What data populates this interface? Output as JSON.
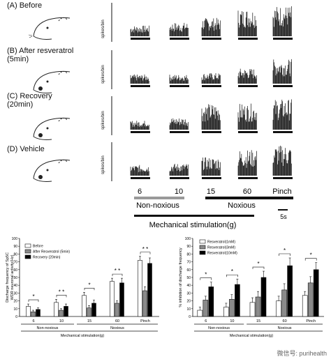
{
  "top_figure": {
    "panels": [
      {
        "label": "(A) Before"
      },
      {
        "label": "(B) After resveratrol\n(5min)"
      },
      {
        "label": "(C) Recovery\n(20min)"
      },
      {
        "label": "(D)  Vehicle"
      }
    ],
    "y_axis_label": "spikes/bin",
    "stimulus_labels": [
      "6",
      "10",
      "15",
      "60",
      "Pinch"
    ],
    "group_non_noxious": "Non-noxious",
    "group_noxious": "Noxious",
    "axis_title": "Mechanical stimulation(g)",
    "scale_bar": "5s"
  },
  "chart_data": [
    {
      "type": "bar",
      "ylabel": "Discharge frequency of Sp5C\nWDR neuronal activity(Hz)",
      "xlabel": "Mechanical stimulation(g)",
      "ylim": [
        0,
        100
      ],
      "yticks": [
        0,
        10,
        20,
        30,
        40,
        50,
        60,
        70,
        80,
        90,
        100
      ],
      "categories": [
        "6",
        "10",
        "15",
        "60",
        "Pinch"
      ],
      "groups": [
        {
          "label": "Non-noxious",
          "span": [
            0,
            1
          ]
        },
        {
          "label": "Noxious",
          "span": [
            2,
            4
          ]
        }
      ],
      "series": [
        {
          "name": "Before",
          "color": "#ffffff",
          "values": [
            13,
            18,
            27,
            45,
            72
          ],
          "errors": [
            3,
            4,
            4,
            4,
            5
          ]
        },
        {
          "name": "After Resveratrol (5min)",
          "color": "#8a8a8a",
          "values": [
            6,
            8,
            11,
            17,
            33
          ],
          "errors": [
            2,
            2,
            3,
            3,
            5
          ]
        },
        {
          "name": "Recovery (20min)",
          "color": "#000000",
          "values": [
            9,
            13,
            17,
            43,
            68
          ],
          "errors": [
            2,
            3,
            4,
            6,
            7
          ]
        }
      ],
      "annotations": [
        "*",
        "#",
        "* *",
        "* *",
        "* *",
        "*",
        "#",
        "#"
      ]
    },
    {
      "type": "bar",
      "ylabel": "% inhibition of discharge frequency",
      "xlabel": "Mechanical stimulation(g)",
      "ylim": [
        0,
        100
      ],
      "yticks": [
        0,
        10,
        20,
        30,
        40,
        50,
        60,
        70,
        80,
        90,
        100
      ],
      "categories": [
        "6",
        "10",
        "15",
        "60",
        "Pinch"
      ],
      "groups": [
        {
          "label": "Non-noxious",
          "span": [
            0,
            1
          ]
        },
        {
          "label": "Noxious",
          "span": [
            2,
            4
          ]
        }
      ],
      "series": [
        {
          "name": "Resveratrol(1mM)",
          "color": "#ffffff",
          "values": [
            8,
            12,
            18,
            20,
            27
          ],
          "errors": [
            4,
            5,
            6,
            6,
            5
          ]
        },
        {
          "name": "Resveratrol(3mM)",
          "color": "#8a8a8a",
          "values": [
            21,
            22,
            25,
            34,
            43
          ],
          "errors": [
            5,
            6,
            7,
            8,
            8
          ]
        },
        {
          "name": "Resveratrol(10mM)",
          "color": "#000000",
          "values": [
            38,
            41,
            50,
            65,
            60
          ],
          "errors": [
            6,
            7,
            8,
            10,
            9
          ]
        }
      ],
      "annotations": [
        "*",
        "*",
        "*",
        "*",
        "*"
      ]
    }
  ],
  "watermark": "微信号: purihealth"
}
